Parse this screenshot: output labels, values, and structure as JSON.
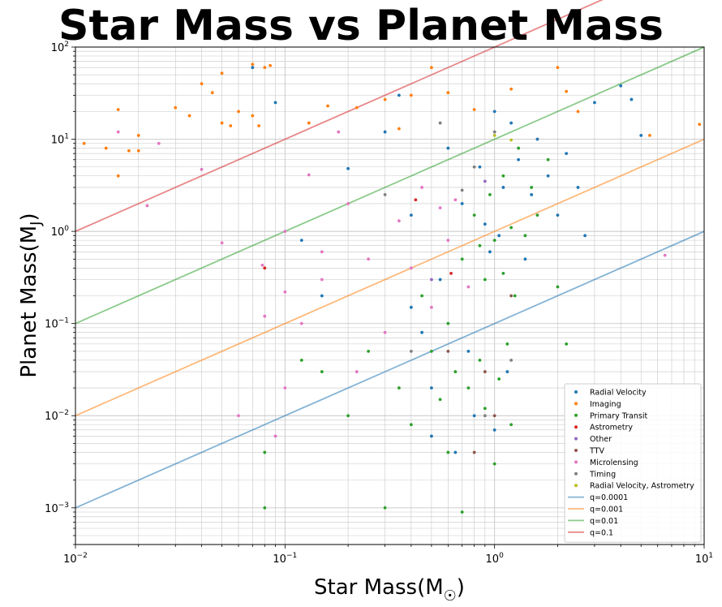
{
  "chart_data": {
    "type": "scatter",
    "title": "Star Mass vs Planet Mass",
    "xlabel": "Star Mass(M",
    "xlabel_sub": "☉",
    "xlabel_end": ")",
    "ylabel": "Planet Mass(M",
    "ylabel_sub": "J",
    "ylabel_end": ")",
    "x_scale": "log",
    "y_scale": "log",
    "xlim": [
      0.01,
      10
    ],
    "ylim": [
      0.0004,
      100
    ],
    "x_ticks": [
      {
        "value": 0.01,
        "base": "10",
        "exp": "−2"
      },
      {
        "value": 0.1,
        "base": "10",
        "exp": "−1"
      },
      {
        "value": 1,
        "base": "10",
        "exp": "0"
      },
      {
        "value": 10,
        "base": "10",
        "exp": "1"
      }
    ],
    "y_ticks": [
      {
        "value": 0.001,
        "base": "10",
        "exp": "−3"
      },
      {
        "value": 0.01,
        "base": "10",
        "exp": "−2"
      },
      {
        "value": 0.1,
        "base": "10",
        "exp": "−1"
      },
      {
        "value": 1,
        "base": "10",
        "exp": "0"
      },
      {
        "value": 10,
        "base": "10",
        "exp": "1"
      },
      {
        "value": 100,
        "base": "10",
        "exp": "2"
      }
    ],
    "grid": true,
    "legend_position": "lower-right",
    "series": [
      {
        "name": "Radial Velocity",
        "color": "#1f77b4",
        "points": [
          [
            0.07,
            60
          ],
          [
            0.09,
            25
          ],
          [
            0.12,
            0.8
          ],
          [
            0.15,
            0.2
          ],
          [
            0.2,
            4.8
          ],
          [
            0.3,
            12
          ],
          [
            0.35,
            30
          ],
          [
            0.4,
            1.5
          ],
          [
            0.45,
            0.08
          ],
          [
            0.5,
            0.02
          ],
          [
            0.55,
            0.3
          ],
          [
            0.6,
            8
          ],
          [
            0.7,
            2
          ],
          [
            0.75,
            0.05
          ],
          [
            0.8,
            0.01
          ],
          [
            0.85,
            5
          ],
          [
            0.9,
            1.2
          ],
          [
            0.95,
            0.6
          ],
          [
            1.0,
            20
          ],
          [
            1.05,
            0.9
          ],
          [
            1.1,
            3
          ],
          [
            1.15,
            0.03
          ],
          [
            1.2,
            15
          ],
          [
            1.3,
            6
          ],
          [
            1.4,
            0.5
          ],
          [
            1.5,
            2.5
          ],
          [
            1.6,
            10
          ],
          [
            1.8,
            4
          ],
          [
            2.0,
            1.5
          ],
          [
            2.2,
            7
          ],
          [
            2.5,
            3
          ],
          [
            2.7,
            0.9
          ],
          [
            3.0,
            25
          ],
          [
            4.0,
            38
          ],
          [
            4.5,
            27
          ],
          [
            5.0,
            11
          ],
          [
            0.65,
            0.004
          ],
          [
            0.5,
            0.006
          ],
          [
            0.4,
            0.15
          ],
          [
            1.0,
            0.007
          ]
        ]
      },
      {
        "name": "Imaging",
        "color": "#ff7f0e",
        "points": [
          [
            0.011,
            9
          ],
          [
            0.014,
            8
          ],
          [
            0.016,
            21
          ],
          [
            0.018,
            7.5
          ],
          [
            0.02,
            11
          ],
          [
            0.02,
            7.5
          ],
          [
            0.03,
            22
          ],
          [
            0.035,
            18
          ],
          [
            0.04,
            40
          ],
          [
            0.045,
            32
          ],
          [
            0.05,
            15
          ],
          [
            0.05,
            52
          ],
          [
            0.055,
            14
          ],
          [
            0.06,
            20
          ],
          [
            0.07,
            18
          ],
          [
            0.07,
            65
          ],
          [
            0.075,
            14
          ],
          [
            0.08,
            60
          ],
          [
            0.085,
            63
          ],
          [
            0.13,
            15
          ],
          [
            0.16,
            23
          ],
          [
            0.22,
            22
          ],
          [
            0.3,
            27
          ],
          [
            0.35,
            13
          ],
          [
            0.4,
            30
          ],
          [
            0.5,
            60
          ],
          [
            0.6,
            32
          ],
          [
            0.8,
            21
          ],
          [
            1.2,
            35
          ],
          [
            2.0,
            60
          ],
          [
            2.2,
            33
          ],
          [
            2.5,
            20
          ],
          [
            5.5,
            11
          ],
          [
            9.5,
            14.5
          ],
          [
            0.016,
            4
          ]
        ]
      },
      {
        "name": "Primary Transit",
        "color": "#2ca02c",
        "points": [
          [
            0.08,
            0.001
          ],
          [
            0.08,
            0.004
          ],
          [
            0.12,
            0.04
          ],
          [
            0.15,
            0.03
          ],
          [
            0.2,
            0.01
          ],
          [
            0.25,
            0.05
          ],
          [
            0.3,
            0.001
          ],
          [
            0.35,
            0.02
          ],
          [
            0.4,
            0.008
          ],
          [
            0.45,
            0.2
          ],
          [
            0.5,
            0.05
          ],
          [
            0.55,
            0.015
          ],
          [
            0.6,
            0.1
          ],
          [
            0.65,
            0.03
          ],
          [
            0.7,
            0.5
          ],
          [
            0.75,
            0.02
          ],
          [
            0.8,
            1.5
          ],
          [
            0.85,
            0.04
          ],
          [
            0.9,
            0.3
          ],
          [
            0.95,
            2.5
          ],
          [
            1.0,
            0.8
          ],
          [
            1.05,
            0.025
          ],
          [
            1.1,
            4
          ],
          [
            1.15,
            0.06
          ],
          [
            1.2,
            1.1
          ],
          [
            1.25,
            0.2
          ],
          [
            1.3,
            8
          ],
          [
            1.4,
            0.9
          ],
          [
            1.5,
            3
          ],
          [
            1.6,
            1.5
          ],
          [
            1.8,
            6
          ],
          [
            2.0,
            0.25
          ],
          [
            2.2,
            0.06
          ],
          [
            0.7,
            0.0009
          ],
          [
            1.0,
            0.003
          ],
          [
            0.9,
            0.012
          ],
          [
            1.1,
            0.35
          ],
          [
            0.85,
            0.7
          ],
          [
            1.2,
            0.008
          ],
          [
            0.6,
            0.004
          ]
        ]
      },
      {
        "name": "Astrometry",
        "color": "#d62728",
        "points": [
          [
            0.08,
            0.4
          ],
          [
            0.42,
            2.2
          ],
          [
            0.62,
            0.35
          ]
        ]
      },
      {
        "name": "Other",
        "color": "#9467bd",
        "points": [
          [
            0.5,
            0.3
          ],
          [
            0.9,
            3.5
          ]
        ]
      },
      {
        "name": "TTV",
        "color": "#8c564b",
        "points": [
          [
            0.6,
            0.05
          ],
          [
            0.9,
            0.03
          ],
          [
            1.0,
            0.01
          ],
          [
            1.2,
            0.2
          ],
          [
            0.8,
            0.004
          ]
        ]
      },
      {
        "name": "Microlensing",
        "color": "#e377c2",
        "points": [
          [
            0.016,
            12
          ],
          [
            0.022,
            1.9
          ],
          [
            0.025,
            9
          ],
          [
            0.04,
            4.7
          ],
          [
            0.05,
            0.75
          ],
          [
            0.06,
            0.01
          ],
          [
            0.078,
            0.43
          ],
          [
            0.08,
            0.12
          ],
          [
            0.1,
            0.22
          ],
          [
            0.1,
            1.0
          ],
          [
            0.12,
            0.1
          ],
          [
            0.13,
            4.1
          ],
          [
            0.15,
            0.6
          ],
          [
            0.18,
            12
          ],
          [
            0.2,
            2
          ],
          [
            0.22,
            0.03
          ],
          [
            0.25,
            0.5
          ],
          [
            0.3,
            0.08
          ],
          [
            0.35,
            1.3
          ],
          [
            0.4,
            0.4
          ],
          [
            0.45,
            3
          ],
          [
            0.5,
            0.15
          ],
          [
            0.55,
            1.8
          ],
          [
            0.6,
            0.8
          ],
          [
            0.65,
            2.2
          ],
          [
            0.75,
            0.25
          ],
          [
            0.1,
            0.02
          ],
          [
            0.15,
            0.3
          ],
          [
            6.5,
            0.55
          ],
          [
            0.09,
            0.006
          ]
        ]
      },
      {
        "name": "Timing",
        "color": "#7f7f7f",
        "points": [
          [
            0.3,
            2.5
          ],
          [
            0.4,
            0.05
          ],
          [
            0.55,
            15
          ],
          [
            0.7,
            2.8
          ],
          [
            0.8,
            5
          ],
          [
            0.9,
            0.01
          ],
          [
            1.0,
            12
          ],
          [
            1.2,
            0.04
          ]
        ]
      },
      {
        "name": "Radial Velocity, Astrometry",
        "color": "#bcbd22",
        "points": [
          [
            1.0,
            11
          ],
          [
            1.2,
            9.8
          ]
        ]
      }
    ],
    "reference_lines": [
      {
        "name": "q=0.0001",
        "color": "#1f77b4",
        "q": 0.0001
      },
      {
        "name": "q=0.001",
        "color": "#ff7f0e",
        "q": 0.001
      },
      {
        "name": "q=0.01",
        "color": "#2ca02c",
        "q": 0.01
      },
      {
        "name": "q=0.1",
        "color": "#d62728",
        "q": 0.1
      }
    ]
  }
}
